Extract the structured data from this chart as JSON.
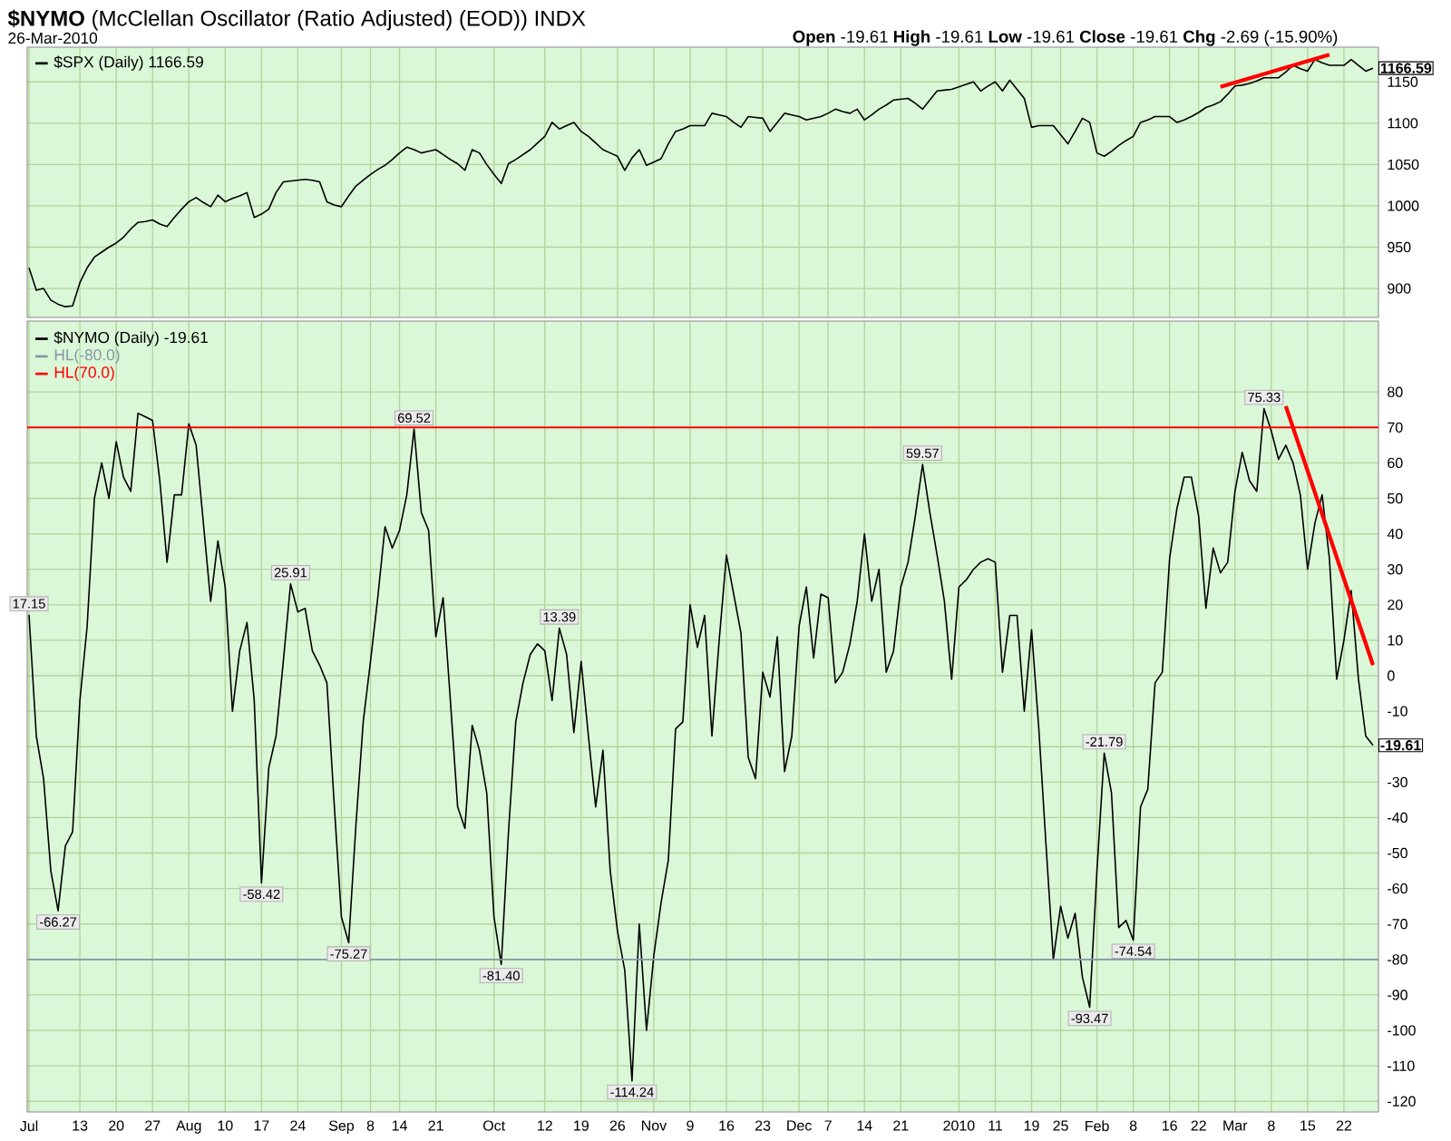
{
  "chart_data": [
    {
      "type": "line",
      "title": "**$NYMO** (McClellan Oscillator (Ratio Adjusted) (EOD)) INDX",
      "annotations": [
        "26-Mar-2010",
        "**Open** -19.61 **High** -19.61 **Low** -19.61 **Close** -19.61 **Chg** -2.69 (-15.90%)",
        "1166.59"
      ],
      "categories": [
        null,
        null,
        null,
        null,
        null,
        null,
        null,
        null,
        null,
        null,
        null,
        null,
        null,
        null,
        null,
        null,
        null,
        null,
        null,
        null,
        null,
        null,
        null,
        null,
        null,
        null,
        null,
        null,
        null,
        null,
        null,
        null,
        null,
        null,
        null,
        null,
        null,
        null,
        null,
        null,
        null,
        null,
        null,
        null,
        null,
        null,
        null,
        null,
        null,
        null,
        null,
        null,
        null,
        null,
        null,
        null,
        null,
        null,
        null,
        null,
        null,
        null,
        null,
        null,
        null,
        null,
        null,
        null,
        null,
        null,
        null,
        null,
        null,
        null,
        null,
        null,
        null,
        null,
        null,
        null,
        null,
        null,
        null,
        null,
        null,
        null,
        null,
        null,
        null,
        null,
        null,
        null,
        null,
        null,
        null,
        null,
        null,
        null,
        null,
        null,
        null,
        null,
        null,
        null,
        null,
        null,
        null,
        null,
        null,
        null,
        null,
        null,
        null,
        null,
        null,
        null,
        null,
        null,
        null,
        null,
        null,
        null,
        null,
        null,
        null,
        null,
        null,
        null,
        null,
        null,
        null,
        null,
        null,
        null,
        null,
        null,
        null,
        null,
        null,
        null,
        null,
        null,
        null,
        null,
        null,
        null,
        null,
        null,
        null,
        null,
        null,
        null,
        null,
        null,
        null,
        null,
        null,
        null,
        null,
        null,
        null,
        null,
        null,
        null,
        null,
        null,
        null,
        null,
        null,
        null,
        null,
        null,
        null,
        null,
        null,
        null,
        null,
        null,
        null,
        null,
        null,
        null,
        null,
        null,
        null,
        null
      ],
      "series": [
        {
          "name": "$SPX (Daily) 1166.59",
          "color": "#000000",
          "values": [
            925,
            898,
            900,
            886,
            881,
            878,
            879,
            907,
            925,
            938,
            944,
            950,
            955,
            962,
            972,
            980,
            981,
            983,
            978,
            975,
            986,
            996,
            1005,
            1010,
            1004,
            999,
            1013,
            1005,
            1009,
            1012,
            1016,
            986,
            990,
            996,
            1016,
            1029,
            1030,
            1031,
            1032,
            1031,
            1029,
            1005,
            1001,
            999,
            1012,
            1024,
            1031,
            1038,
            1044,
            1049,
            1056,
            1064,
            1071,
            1068,
            1064,
            1066,
            1068,
            1062,
            1056,
            1051,
            1043,
            1068,
            1064,
            1050,
            1038,
            1027,
            1051,
            1056,
            1062,
            1068,
            1076,
            1084,
            1101,
            1093,
            1097,
            1101,
            1090,
            1084,
            1076,
            1068,
            1064,
            1060,
            1043,
            1058,
            1068,
            1049,
            1053,
            1057,
            1075,
            1090,
            1093,
            1097,
            1097,
            1097,
            1112,
            1110,
            1108,
            1101,
            1095,
            1108,
            1107,
            1106,
            1090,
            1101,
            1112,
            1110,
            1108,
            1104,
            1106,
            1108,
            1112,
            1117,
            1114,
            1112,
            1117,
            1104,
            1110,
            1117,
            1122,
            1128,
            1129,
            1130,
            1124,
            1117,
            1128,
            1139,
            1140,
            1141,
            1144,
            1147,
            1150,
            1139,
            1145,
            1150,
            1139,
            1152,
            1141,
            1130,
            1095,
            1097,
            1097,
            1097,
            1086,
            1075,
            1090,
            1106,
            1101,
            1064,
            1060,
            1066,
            1073,
            1079,
            1084,
            1101,
            1104,
            1108,
            1108,
            1108,
            1101,
            1104,
            1108,
            1113,
            1119,
            1122,
            1126,
            1135,
            1145,
            1146,
            1148,
            1151,
            1155,
            1155,
            1155,
            1162,
            1170,
            1166,
            1163,
            1177,
            1173,
            1170,
            1170,
            1170,
            1177,
            1170,
            1163,
            1166.59
          ]
        },
        {
          "color": "#ff0000",
          "values": [
            null,
            null,
            null,
            null,
            null,
            null,
            null,
            null,
            null,
            null,
            null,
            null,
            null,
            null,
            null,
            null,
            null,
            null,
            null,
            null,
            null,
            null,
            null,
            null,
            null,
            null,
            null,
            null,
            null,
            null,
            null,
            null,
            null,
            null,
            null,
            null,
            null,
            null,
            null,
            null,
            null,
            null,
            null,
            null,
            null,
            null,
            null,
            null,
            null,
            null,
            null,
            null,
            null,
            null,
            null,
            null,
            null,
            null,
            null,
            null,
            null,
            null,
            null,
            null,
            null,
            null,
            null,
            null,
            null,
            null,
            null,
            null,
            null,
            null,
            null,
            null,
            null,
            null,
            null,
            null,
            null,
            null,
            null,
            null,
            null,
            null,
            null,
            null,
            null,
            null,
            null,
            null,
            null,
            null,
            null,
            null,
            null,
            null,
            null,
            null,
            null,
            null,
            null,
            null,
            null,
            null,
            null,
            null,
            null,
            null,
            null,
            null,
            null,
            null,
            null,
            null,
            null,
            null,
            null,
            null,
            null,
            null,
            null,
            null,
            null,
            null,
            null,
            null,
            null,
            null,
            null,
            null,
            null,
            null,
            null,
            null,
            null,
            null,
            null,
            null,
            null,
            null,
            null,
            null,
            null,
            null,
            null,
            null,
            null,
            null,
            null,
            null,
            null,
            null,
            null,
            null,
            null,
            null,
            null,
            null,
            null,
            null,
            null,
            null,
            1144,
            null,
            null,
            null,
            null,
            null,
            null,
            null,
            null,
            null,
            null,
            null,
            null,
            null,
            null,
            1183,
            null,
            null,
            null,
            null,
            null,
            null
          ]
        }
      ],
      "ylim": [
        865,
        1192
      ],
      "yticks": [
        900,
        950,
        1000,
        1050,
        1100,
        1150
      ],
      "tick_labels": "y",
      "grid": true,
      "legend": "top left"
    },
    {
      "type": "line",
      "annotations": [
        {
          "text": "17.15",
          "y": 17.15
        },
        {
          "text": "-66.27",
          "y": -66.27
        },
        {
          "text": "-58.42",
          "y": -58.42
        },
        {
          "text": "25.91",
          "y": 25.91
        },
        {
          "text": "-75.27",
          "y": -75.27
        },
        {
          "text": "69.52",
          "y": 69.52
        },
        {
          "text": "-81.40",
          "y": -81.4
        },
        {
          "text": "13.39",
          "y": 13.39
        },
        {
          "text": "-114.24",
          "y": -114.24
        },
        {
          "text": "59.57",
          "y": 59.57
        },
        {
          "text": "-93.47",
          "y": -93.47
        },
        {
          "text": "-21.79",
          "y": -21.79
        },
        {
          "text": "-74.54",
          "y": -74.54
        },
        {
          "text": "75.33",
          "y": 75.33
        },
        "-19.61"
      ],
      "categories": [
        "Jul",
        null,
        null,
        null,
        null,
        null,
        null,
        "13",
        null,
        null,
        null,
        null,
        "20",
        null,
        null,
        null,
        null,
        "27",
        null,
        null,
        null,
        null,
        "Aug",
        null,
        null,
        null,
        null,
        "10",
        null,
        null,
        null,
        null,
        "17",
        null,
        null,
        null,
        null,
        "24",
        null,
        null,
        null,
        null,
        null,
        "Sep",
        null,
        null,
        null,
        "8",
        null,
        null,
        null,
        "14",
        null,
        null,
        null,
        null,
        "21",
        null,
        null,
        null,
        null,
        null,
        null,
        null,
        "Oct",
        null,
        null,
        null,
        null,
        null,
        null,
        "12",
        null,
        null,
        null,
        null,
        "19",
        null,
        null,
        null,
        null,
        "26",
        null,
        null,
        null,
        null,
        "Nov",
        null,
        null,
        null,
        null,
        "9",
        null,
        null,
        null,
        null,
        "16",
        null,
        null,
        null,
        null,
        "23",
        null,
        null,
        null,
        null,
        "Dec",
        null,
        null,
        null,
        "7",
        null,
        null,
        null,
        null,
        "14",
        null,
        null,
        null,
        null,
        "21",
        null,
        null,
        null,
        null,
        null,
        null,
        null,
        "2010",
        null,
        null,
        null,
        null,
        "11",
        null,
        null,
        null,
        null,
        "19",
        null,
        null,
        null,
        "25",
        null,
        null,
        null,
        null,
        "Feb",
        null,
        null,
        null,
        null,
        "8",
        null,
        null,
        null,
        null,
        "16",
        null,
        null,
        null,
        "22",
        null,
        null,
        null,
        null,
        "Mar",
        null,
        null,
        null,
        null,
        "8",
        null,
        null,
        null,
        null,
        "15",
        null,
        null,
        null,
        null,
        "22",
        null,
        null,
        null,
        null
      ],
      "series": [
        {
          "name": "$NYMO (Daily) -19.61",
          "color": "#000000",
          "values": [
            17.15,
            -17,
            -29,
            -55,
            -66.27,
            -48,
            -44,
            -7,
            14,
            50,
            60,
            50,
            66,
            56,
            52,
            74,
            73,
            72,
            55,
            32,
            51,
            51,
            71,
            65,
            43,
            21,
            38,
            25,
            -10,
            7,
            15,
            -7,
            -58.42,
            -26,
            -17,
            4,
            25.91,
            18,
            19,
            7,
            3,
            -2,
            -36,
            -68,
            -75.27,
            -42,
            -13,
            4,
            22,
            42,
            36,
            41,
            51,
            69.52,
            46,
            41,
            11,
            22,
            -7,
            -37,
            -43,
            -14,
            -21,
            -33,
            -68,
            -81.4,
            -44,
            -13,
            -2,
            6,
            9,
            7,
            -7,
            13.39,
            6,
            -16,
            4,
            -17,
            -37,
            -21,
            -55,
            -72,
            -83,
            -114.24,
            -70,
            -100,
            -79,
            -64,
            -52,
            -15,
            -13,
            20,
            8,
            17,
            -17,
            10,
            34,
            23,
            12,
            -23,
            -29,
            1,
            -6,
            11,
            -27,
            -17,
            14,
            25,
            5,
            23,
            22,
            -2,
            1,
            9,
            21,
            40,
            21,
            30,
            1,
            7,
            25,
            32,
            45,
            59.57,
            46,
            34,
            21,
            -1,
            25,
            27,
            30,
            32,
            33,
            32,
            1,
            17,
            17,
            -10,
            13,
            -15,
            -48,
            -80,
            -65,
            -74,
            -67,
            -85,
            -93.47,
            -55,
            -21.79,
            -33,
            -71,
            -69,
            -74.54,
            -37,
            -32,
            -2,
            1,
            33,
            47,
            56,
            56,
            45,
            19,
            36,
            29,
            32,
            52,
            63,
            55,
            52,
            75.33,
            69,
            61,
            65,
            60,
            51,
            30,
            43,
            51,
            33,
            -1,
            10,
            24,
            -1,
            -17,
            -19.61
          ]
        },
        {
          "color": "#ff0000",
          "values": [
            null,
            null,
            null,
            null,
            null,
            null,
            null,
            null,
            null,
            null,
            null,
            null,
            null,
            null,
            null,
            null,
            null,
            null,
            null,
            null,
            null,
            null,
            null,
            null,
            null,
            null,
            null,
            null,
            null,
            null,
            null,
            null,
            null,
            null,
            null,
            null,
            null,
            null,
            null,
            null,
            null,
            null,
            null,
            null,
            null,
            null,
            null,
            null,
            null,
            null,
            null,
            null,
            null,
            null,
            null,
            null,
            null,
            null,
            null,
            null,
            null,
            null,
            null,
            null,
            null,
            null,
            null,
            null,
            null,
            null,
            null,
            null,
            null,
            null,
            null,
            null,
            null,
            null,
            null,
            null,
            null,
            null,
            null,
            null,
            null,
            null,
            null,
            null,
            null,
            null,
            null,
            null,
            null,
            null,
            null,
            null,
            null,
            null,
            null,
            null,
            null,
            null,
            null,
            null,
            null,
            null,
            null,
            null,
            null,
            null,
            null,
            null,
            null,
            null,
            null,
            null,
            null,
            null,
            null,
            null,
            null,
            null,
            null,
            null,
            null,
            null,
            null,
            null,
            null,
            null,
            null,
            null,
            null,
            null,
            null,
            null,
            null,
            null,
            null,
            null,
            null,
            null,
            null,
            null,
            null,
            null,
            null,
            null,
            null,
            null,
            null,
            null,
            null,
            null,
            null,
            null,
            null,
            null,
            null,
            null,
            null,
            null,
            null,
            null,
            null,
            null,
            null,
            null,
            null,
            null,
            null,
            null,
            null,
            76,
            null,
            null,
            null,
            null,
            null,
            null,
            null,
            null,
            null,
            null,
            null,
            3
          ]
        }
      ],
      "ref_lines": [
        {
          "axis": "y",
          "value": -80,
          "label": "HL(-80.0)",
          "color": "#8796a6"
        },
        {
          "axis": "y",
          "value": 70,
          "label": "HL(70.0)",
          "color": "#ff0000"
        }
      ],
      "ylim": [
        -123,
        100
      ],
      "yticks": [
        -120,
        -110,
        -100,
        -90,
        -80,
        -70,
        -60,
        -50,
        -40,
        -30,
        {
          "value": -20,
          "label": null
        },
        -10,
        0,
        10,
        20,
        30,
        40,
        50,
        60,
        70,
        80
      ],
      "grid": true,
      "legend": "top left"
    }
  ]
}
